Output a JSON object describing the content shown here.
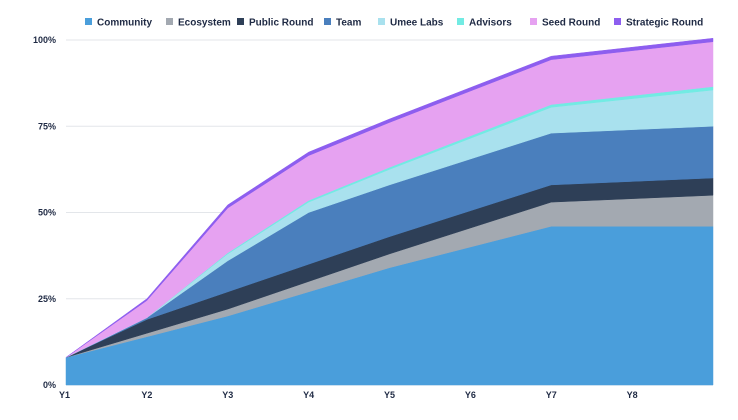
{
  "chart_data": {
    "type": "area",
    "stacked": true,
    "title": "",
    "xlabel": "",
    "ylabel": "",
    "ylim": [
      0,
      100
    ],
    "y_ticks": [
      "0%",
      "25%",
      "50%",
      "75%",
      "100%"
    ],
    "x": [
      "Y1",
      "Y2",
      "Y3",
      "Y4",
      "Y5",
      "Y6",
      "Y7",
      "Y8",
      ""
    ],
    "grid": "horizontal",
    "legend_position": "top",
    "series": [
      {
        "name": "Community",
        "color": "#4a9edb",
        "values": [
          8,
          14,
          20,
          27,
          34,
          40,
          46,
          46,
          46
        ]
      },
      {
        "name": "Ecosystem",
        "color": "#a3a9b1",
        "values": [
          0,
          1,
          2,
          3,
          4,
          5.5,
          7,
          8,
          9
        ]
      },
      {
        "name": "Public Round",
        "color": "#2e3f57",
        "values": [
          0,
          4,
          5,
          5,
          5,
          5,
          5,
          5,
          5
        ]
      },
      {
        "name": "Team",
        "color": "#4a7fbd",
        "values": [
          0,
          0.5,
          9,
          15,
          15,
          15,
          15,
          15,
          15
        ]
      },
      {
        "name": "Umee Labs",
        "color": "#a9e1ee",
        "values": [
          0,
          0,
          2,
          3,
          4.5,
          6,
          7.5,
          9,
          10.5
        ]
      },
      {
        "name": "Advisors",
        "color": "#72ebe3",
        "values": [
          0,
          0,
          0.3,
          0.5,
          0.6,
          0.7,
          0.8,
          0.9,
          1
        ]
      },
      {
        "name": "Seed Round",
        "color": "#e6a2f1",
        "values": [
          0,
          5,
          13,
          13,
          13,
          13,
          13,
          13,
          13
        ]
      },
      {
        "name": "Strategic Round",
        "color": "#8d5eef",
        "values": [
          0,
          0.5,
          0.9,
          1,
          1,
          1,
          1,
          1,
          1
        ]
      }
    ]
  }
}
